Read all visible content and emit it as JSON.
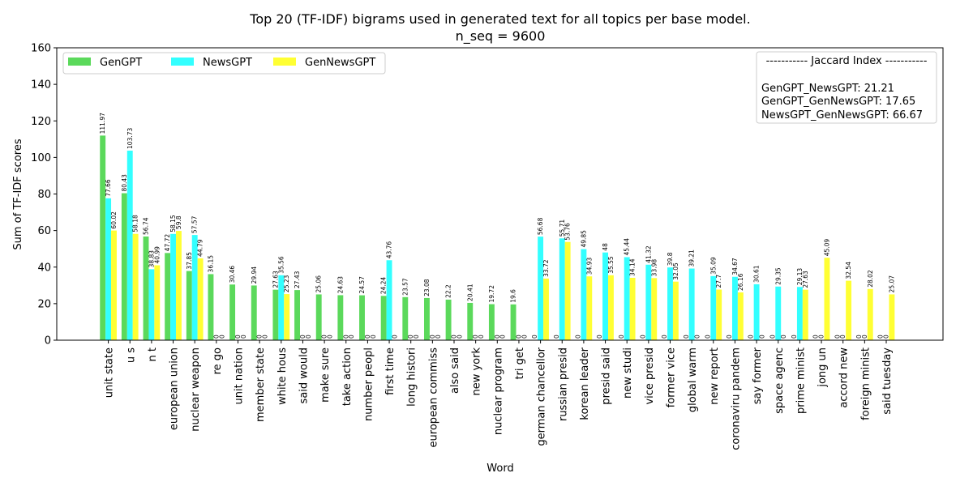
{
  "chart_data": {
    "type": "bar",
    "title": "Top 20 (TF-IDF) bigrams used in generated text for all topics per base model.",
    "subtitle": "n_seq = 9600",
    "xlabel": "Word",
    "ylabel": "Sum of TF-IDF scores",
    "ylim": [
      0,
      160
    ],
    "yticks": [
      0,
      20,
      40,
      60,
      80,
      100,
      120,
      140,
      160
    ],
    "legend_position": "top-left",
    "grid": false,
    "categories": [
      "unit state",
      "u s",
      "n t",
      "european union",
      "nuclear weapon",
      "re go",
      "unit nation",
      "member state",
      "white hous",
      "said would",
      "make sure",
      "take action",
      "number peopl",
      "first time",
      "long histori",
      "european commiss",
      "also said",
      "new york",
      "nuclear program",
      "tri get",
      "german chancellor",
      "russian presid",
      "korean leader",
      "presid said",
      "new studi",
      "vice presid",
      "former vice",
      "global warm",
      "new report",
      "coronaviru pandem",
      "say former",
      "space agenc",
      "prime minist",
      "jong un",
      "accord new",
      "foreign minist",
      "said tuesday"
    ],
    "series": [
      {
        "name": "GenGPT",
        "color": "#5bd95b",
        "values": [
          111.97,
          80.43,
          56.74,
          47.72,
          37.85,
          36.15,
          30.46,
          29.94,
          27.63,
          27.43,
          25.06,
          24.63,
          24.57,
          24.24,
          23.57,
          23.08,
          22.2,
          20.41,
          19.72,
          19.6,
          0,
          0,
          0,
          0,
          0,
          0,
          0,
          0,
          0,
          0,
          0,
          0,
          0,
          0,
          0,
          0,
          0
        ]
      },
      {
        "name": "NewsGPT",
        "color": "#33ffff",
        "values": [
          77.66,
          103.73,
          38.83,
          58.15,
          57.57,
          0,
          0,
          0,
          35.56,
          0,
          0,
          0,
          0,
          43.76,
          0,
          0,
          0,
          0,
          0,
          0,
          56.68,
          55.71,
          49.85,
          48,
          45.44,
          41.32,
          39.8,
          39.21,
          35.09,
          34.67,
          30.61,
          29.35,
          29.13,
          0,
          0,
          0,
          0
        ]
      },
      {
        "name": "GenNewsGPT",
        "color": "#ffff33",
        "values": [
          60.02,
          58.18,
          40.99,
          59.8,
          44.79,
          0,
          0,
          0,
          25.23,
          0,
          0,
          0,
          0,
          0,
          0,
          0,
          0,
          0,
          0,
          0,
          33.72,
          53.76,
          34.93,
          35.55,
          34.14,
          33.98,
          32.05,
          0,
          27.7,
          26.16,
          0,
          0,
          27.63,
          45.09,
          32.54,
          28.02,
          25.07
        ]
      }
    ],
    "annotation_lines": [
      "----------- Jaccard Index -----------",
      "",
      "GenGPT_NewsGPT: 21.21",
      "GenGPT_GenNewsGPT: 17.65",
      "NewsGPT_GenNewsGPT: 66.67"
    ]
  }
}
